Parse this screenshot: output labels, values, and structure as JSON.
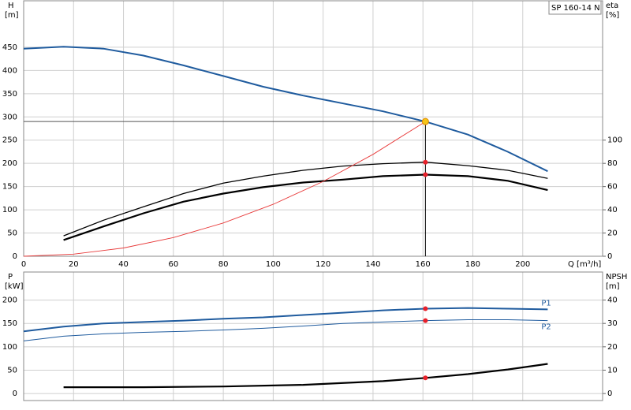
{
  "chart_data": [
    {
      "type": "line",
      "title": "SP 160-14 N",
      "xlabel": "Q [m³/h]",
      "ylabel": "H",
      "yunit": "[m]",
      "y2label": "eta",
      "y2unit": "[%]",
      "xlim": [
        0,
        232
      ],
      "ylim": [
        0,
        550
      ],
      "y2lim": [
        0,
        220
      ],
      "xticks": [
        0,
        20,
        40,
        60,
        80,
        100,
        120,
        140,
        160,
        180,
        200
      ],
      "yticks": [
        0,
        50,
        100,
        150,
        200,
        250,
        300,
        350,
        400,
        450
      ],
      "y2ticks": [
        0,
        20,
        40,
        60,
        80,
        100
      ],
      "grid": true,
      "series": [
        {
          "color": "#1f5b9e",
          "width": 2,
          "axis": "y",
          "x": [
            0,
            16,
            32,
            48,
            64,
            80,
            96,
            112,
            128,
            144,
            161,
            178,
            194,
            210
          ],
          "values": [
            447,
            451,
            447,
            432,
            411,
            388,
            365,
            346,
            329,
            312,
            290,
            262,
            225,
            183
          ]
        },
        {
          "color": "#000000",
          "width": 1.3,
          "axis": "y2",
          "x": [
            16,
            32,
            48,
            64,
            80,
            96,
            112,
            128,
            144,
            161,
            178,
            194,
            210
          ],
          "values": [
            17.6,
            31,
            42.6,
            54,
            63,
            69,
            74,
            77.7,
            79.7,
            81,
            78,
            74,
            67
          ]
        },
        {
          "color": "#000000",
          "width": 2.2,
          "axis": "y2",
          "x": [
            16,
            32,
            48,
            64,
            80,
            96,
            112,
            128,
            144,
            161,
            178,
            194,
            210
          ],
          "values": [
            14,
            25.7,
            37,
            47,
            54,
            59.5,
            63.5,
            66,
            69,
            70.3,
            69,
            65,
            57
          ]
        },
        {
          "color": "#e83a3a",
          "width": 0.9,
          "axis": "y",
          "x": [
            0,
            20,
            40,
            60,
            80,
            100,
            120,
            140,
            161
          ],
          "values": [
            0,
            4.5,
            17.9,
            40.3,
            71.6,
            111.9,
            161.1,
            219.3,
            290
          ]
        }
      ],
      "points": [
        {
          "x": 161,
          "y": 81,
          "axis": "y2",
          "color": "#e8202a"
        },
        {
          "x": 161,
          "y": 70.3,
          "axis": "y2",
          "color": "#e8202a"
        },
        {
          "x": 161,
          "y": 290,
          "axis": "y",
          "color": "#f5c518",
          "operating": true
        }
      ]
    },
    {
      "type": "line",
      "ylabel": "P",
      "yunit": "[kW]",
      "y2label": "NPSH",
      "y2unit": "[m]",
      "xlim": [
        0,
        232
      ],
      "ylim": [
        -15,
        260
      ],
      "y2lim": [
        -3,
        52
      ],
      "yticks": [
        0,
        50,
        100,
        150,
        200
      ],
      "y2ticks": [
        0,
        10,
        20,
        30,
        40
      ],
      "grid": true,
      "series": [
        {
          "name": "P1",
          "color": "#1f5b9e",
          "width": 2,
          "axis": "y",
          "x": [
            0,
            16,
            32,
            48,
            64,
            80,
            96,
            112,
            128,
            144,
            161,
            178,
            194,
            210
          ],
          "values": [
            133,
            143,
            150,
            153,
            156,
            160,
            163,
            168,
            173,
            178,
            181.5,
            183,
            181.5,
            180
          ]
        },
        {
          "name": "P2",
          "color": "#1f5b9e",
          "width": 1,
          "axis": "y",
          "x": [
            0,
            16,
            32,
            48,
            64,
            80,
            96,
            112,
            128,
            144,
            161,
            178,
            194,
            210
          ],
          "values": [
            112.6,
            122.7,
            127.7,
            131,
            133,
            136,
            139.5,
            144.5,
            150,
            153,
            156,
            158,
            158,
            156
          ]
        },
        {
          "color": "#000000",
          "width": 2.2,
          "axis": "y2",
          "x": [
            16,
            48,
            80,
            112,
            144,
            161,
            178,
            194,
            210
          ],
          "values": [
            2.7,
            2.7,
            3,
            3.7,
            5.3,
            6.7,
            8.3,
            10.3,
            12.7
          ]
        }
      ],
      "points": [
        {
          "x": 161,
          "y": 181.5,
          "axis": "y",
          "color": "#e8202a"
        },
        {
          "x": 161,
          "y": 156,
          "axis": "y",
          "color": "#e8202a"
        },
        {
          "x": 161,
          "y": 6.7,
          "axis": "y2",
          "color": "#e8202a"
        }
      ]
    }
  ]
}
